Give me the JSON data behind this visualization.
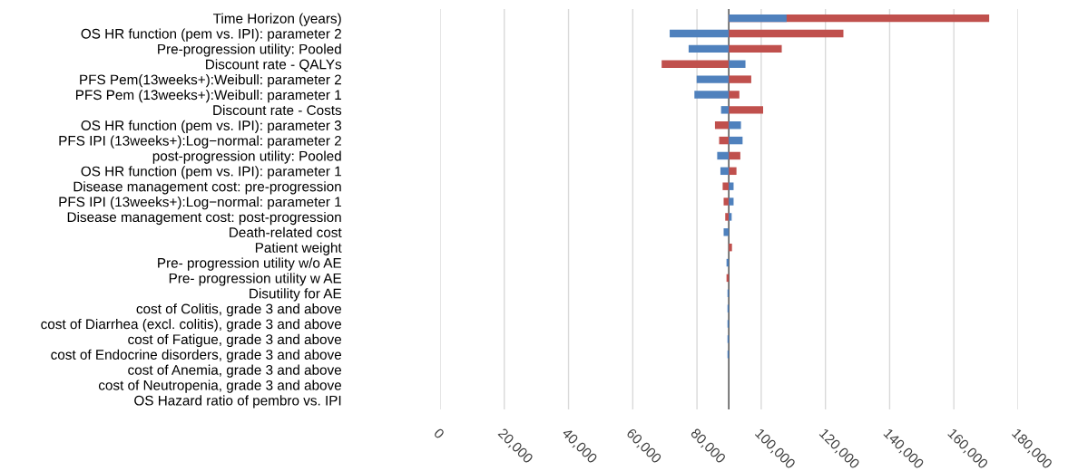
{
  "chart_data": {
    "type": "bar",
    "orientation": "horizontal",
    "categories": [
      "Time Horizon (years)",
      "OS HR function (pem vs. IPI): parameter 2",
      "Pre-progression utility: Pooled",
      "Discount rate - QALYs",
      "PFS Pem(13weeks+):Weibull: parameter 2",
      "PFS Pem (13weeks+):Weibull: parameter 1",
      "Discount rate - Costs",
      "OS HR function (pem vs. IPI): parameter 3",
      "PFS IPI (13weeks+):Log−normal: parameter 2",
      "post-progression utility: Pooled",
      "OS HR function (pem vs. IPI): parameter 1",
      "Disease management cost: pre-progression",
      "PFS IPI (13weeks+):Log−normal: parameter 1",
      "Disease management cost: post-progression",
      "Death-related cost",
      "Patient weight",
      "Pre- progression utility w/o AE",
      "Pre- progression utility w AE",
      "Disutility for AE",
      "cost of Colitis, grade 3 and above",
      "cost of Diarrhea (excl. colitis), grade 3 and above",
      "cost of Fatigue, grade 3 and above",
      "cost of Endocrine disorders, grade 3 and above",
      "cost of Anemia, grade 3 and above",
      "cost of Neutropenia, grade 3 and above",
      "OS Hazard ratio of pembro vs. IPI"
    ],
    "series": [
      {
        "color": "#c0504d",
        "base": [
          89900,
          89900,
          89900,
          89900,
          89900,
          89900,
          89900,
          89900,
          89900,
          89900,
          89900,
          89900,
          89900,
          89900,
          null,
          89900,
          null,
          89900,
          null,
          null,
          null,
          null,
          null,
          null,
          null,
          null
        ],
        "values": [
          81100,
          35700,
          16500,
          -20900,
          7000,
          3300,
          10700,
          -4300,
          -3000,
          3600,
          2400,
          -1900,
          -1600,
          -1100,
          null,
          1000,
          null,
          -700,
          null,
          null,
          null,
          null,
          null,
          null,
          null,
          null
        ]
      },
      {
        "color": "#4f81bd",
        "base": [
          89900,
          89900,
          89900,
          89900,
          89900,
          89900,
          89900,
          89900,
          89900,
          89900,
          89900,
          89900,
          89900,
          89900,
          89900,
          null,
          89900,
          null,
          89900,
          89900,
          89900,
          89900,
          89900,
          null,
          null,
          null
        ],
        "values": [
          18000,
          -18400,
          -12500,
          5200,
          -10000,
          -10700,
          -2400,
          3800,
          4300,
          -3600,
          -2600,
          1500,
          1500,
          900,
          -1600,
          null,
          -700,
          null,
          -400,
          -400,
          -400,
          -400,
          -400,
          null,
          null,
          null
        ]
      }
    ],
    "xlim": [
      0,
      180000
    ],
    "xticks": [
      0,
      {
        "value": 20000,
        "label": "20,000"
      },
      {
        "value": 40000,
        "label": "40,000"
      },
      {
        "value": 60000,
        "label": "60,000"
      },
      {
        "value": 80000,
        "label": "80,000"
      },
      {
        "value": 100000,
        "label": "100,000"
      },
      {
        "value": 120000,
        "label": "120,000"
      },
      {
        "value": 140000,
        "label": "140,000"
      },
      {
        "value": 160000,
        "label": "160,000"
      },
      {
        "value": 180000,
        "label": "180,000"
      }
    ],
    "ref_lines": [
      {
        "axis": "x",
        "value": 89900,
        "color": "#404040"
      }
    ],
    "grid": "x",
    "legend": false
  }
}
